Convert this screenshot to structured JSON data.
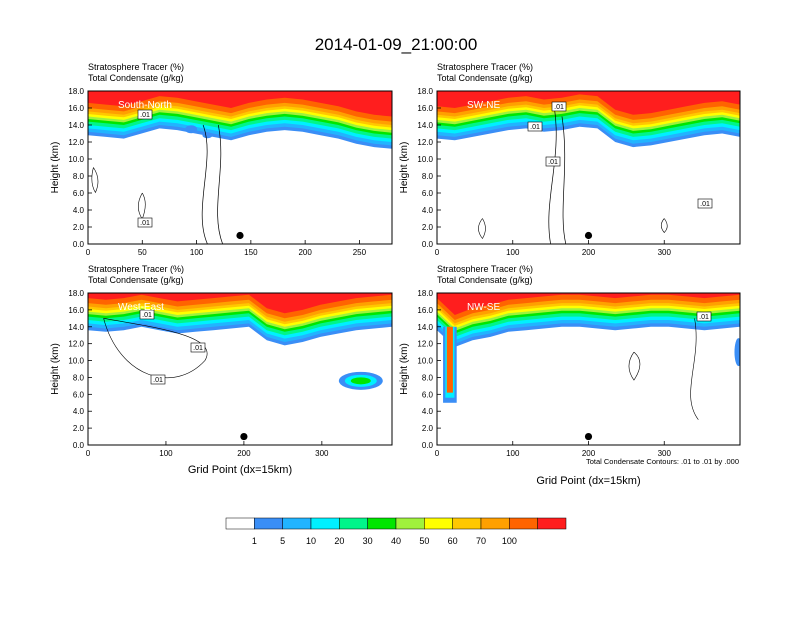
{
  "figure_title": "2014-01-09_21:00:00",
  "contour_note": "Total Condensate Contours: .01 to .01 by .000",
  "colorbar": {
    "labels": [
      "1",
      "5",
      "10",
      "20",
      "30",
      "40",
      "50",
      "60",
      "70",
      "100"
    ],
    "colors": [
      "#ffffff",
      "#3a8ef6",
      "#21b4ff",
      "#00f0ff",
      "#00f58a",
      "#00e600",
      "#a0f23c",
      "#ffff00",
      "#ffc800",
      "#ffa000",
      "#ff6400",
      "#ff1e1e"
    ]
  },
  "chart_data": [
    {
      "type": "heatmap",
      "name": "South-North",
      "title_line1": "Stratosphere Tracer   (%)",
      "title_line2": "Total Condensate   (g/kg)",
      "ylabel": "Height (km)",
      "xlabel": "",
      "xlim": [
        0,
        280
      ],
      "ylim": [
        0,
        18
      ],
      "xticks": [
        "0",
        "50",
        "100",
        "150",
        "200",
        "250"
      ],
      "xtick_values": [
        0,
        50,
        100,
        150,
        200,
        250
      ],
      "yticks": [
        "0.0",
        "2.0",
        "4.0",
        "6.0",
        "8.0",
        "10.0",
        "12.0",
        "14.0",
        "16.0",
        "18.0"
      ],
      "contour_labels": [
        ".01",
        ".01"
      ],
      "marker": {
        "x": 140,
        "y": 1.0
      },
      "tropopause_km": [
        14.2,
        14.0,
        13.8,
        14.4,
        15.0,
        14.8,
        14.4,
        14.0,
        13.6,
        14.2,
        14.6,
        14.8,
        14.6,
        14.2,
        13.8,
        13.2,
        12.8,
        12.6
      ]
    },
    {
      "type": "heatmap",
      "name": "SW-NE",
      "title_line1": "Stratosphere Tracer   (%)",
      "title_line2": "Total Condensate   (g/kg)",
      "ylabel": "Height (km)",
      "xlabel": "",
      "xlim": [
        0,
        400
      ],
      "ylim": [
        0,
        18
      ],
      "xticks": [
        "0",
        "100",
        "200",
        "300"
      ],
      "xtick_values": [
        0,
        100,
        200,
        300
      ],
      "yticks": [
        "0.0",
        "2.0",
        "4.0",
        "6.0",
        "8.0",
        "10.0",
        "12.0",
        "14.0",
        "16.0",
        "18.0"
      ],
      "contour_labels": [
        ".01",
        ".01",
        ".01",
        ".01"
      ],
      "marker": {
        "x": 200,
        "y": 1.0
      },
      "tropopause_km": [
        13.8,
        13.6,
        14.0,
        14.4,
        14.8,
        15.0,
        14.6,
        14.8,
        15.2,
        15.0,
        13.4,
        12.8,
        13.0,
        13.4,
        13.8,
        14.2,
        14.4,
        14.0
      ]
    },
    {
      "type": "heatmap",
      "name": "West-East",
      "title_line1": "Stratosphere Tracer   (%)",
      "title_line2": "Total Condensate   (g/kg)",
      "ylabel": "Height (km)",
      "xlabel": "Grid Point (dx=15km)",
      "xlim": [
        0,
        390
      ],
      "ylim": [
        0,
        18
      ],
      "xticks": [
        "0",
        "100",
        "200",
        "300"
      ],
      "xtick_values": [
        0,
        100,
        200,
        300
      ],
      "yticks": [
        "0.0",
        "2.0",
        "4.0",
        "6.0",
        "8.0",
        "10.0",
        "12.0",
        "14.0",
        "16.0",
        "18.0"
      ],
      "contour_labels": [
        ".01",
        ".01",
        ".01"
      ],
      "marker": {
        "x": 200,
        "y": 1.0
      },
      "tropopause_km": [
        15.0,
        14.8,
        15.0,
        15.4,
        15.0,
        14.6,
        14.8,
        15.0,
        15.2,
        15.4,
        13.8,
        13.2,
        13.6,
        14.2,
        14.6,
        15.0,
        15.2,
        15.4
      ]
    },
    {
      "type": "heatmap",
      "name": "NW-SE",
      "title_line1": "Stratosphere Tracer   (%)",
      "title_line2": "Total Condensate   (g/kg)",
      "ylabel": "Height (km)",
      "xlabel": "Grid Point (dx=15km)",
      "xlim": [
        0,
        400
      ],
      "ylim": [
        0,
        18
      ],
      "xticks": [
        "0",
        "100",
        "200",
        "300"
      ],
      "xtick_values": [
        0,
        100,
        200,
        300
      ],
      "yticks": [
        "0.0",
        "2.0",
        "4.0",
        "6.0",
        "8.0",
        "10.0",
        "12.0",
        "14.0",
        "16.0",
        "18.0"
      ],
      "contour_labels": [
        ".01"
      ],
      "marker": {
        "x": 200,
        "y": 1.0
      },
      "tropopause_km": [
        15.0,
        13.0,
        13.8,
        14.2,
        14.8,
        15.0,
        15.2,
        15.4,
        15.4,
        15.2,
        15.0,
        15.2,
        15.4,
        15.4,
        15.2,
        15.0,
        15.2,
        15.4
      ]
    }
  ]
}
